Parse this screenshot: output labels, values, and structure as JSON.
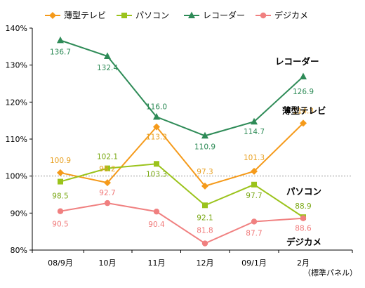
{
  "chart_data": {
    "type": "line",
    "categories": [
      "08/9月",
      "10月",
      "11月",
      "12月",
      "09/1月",
      "2月"
    ],
    "y_ticks": [
      "140%",
      "130%",
      "120%",
      "110%",
      "100%",
      "90%",
      "80%"
    ],
    "y_tick_values": [
      140,
      130,
      120,
      110,
      100,
      90,
      80
    ],
    "ylim": [
      80,
      140
    ],
    "reference_line": 100,
    "note": "（標準パネル）",
    "grid": false,
    "legend_position": "top",
    "series": [
      {
        "name": "薄型テレビ",
        "color": "#f59a1a",
        "marker": "diamond",
        "values": [
          100.9,
          98.2,
          113.3,
          97.3,
          101.3,
          114.3
        ],
        "labels": [
          "100.9",
          "98.2",
          "113.3",
          "97.3",
          "101.3",
          "114.3"
        ],
        "label_color": "#e8a020",
        "end_label": "薄型テレビ"
      },
      {
        "name": "パソコン",
        "color": "#9bc31c",
        "marker": "square",
        "values": [
          98.5,
          102.1,
          103.3,
          92.1,
          97.7,
          88.9
        ],
        "labels": [
          "98.5",
          "102.1",
          "103.3",
          "92.1",
          "97.7",
          "88.9"
        ],
        "label_color": "#7aa814",
        "end_label": "パソコン"
      },
      {
        "name": "レコーダー",
        "color": "#2e8b57",
        "marker": "triangle",
        "values": [
          136.7,
          132.4,
          116.0,
          110.9,
          114.7,
          126.9
        ],
        "labels": [
          "136.7",
          "132.4",
          "116.0",
          "110.9",
          "114.7",
          "126.9"
        ],
        "label_color": "#2e8b57",
        "end_label": "レコーダー"
      },
      {
        "name": "デジカメ",
        "color": "#f08080",
        "marker": "circle",
        "values": [
          90.5,
          92.7,
          90.4,
          81.8,
          87.7,
          88.6
        ],
        "labels": [
          "90.5",
          "92.7",
          "90.4",
          "81.8",
          "87.7",
          "88.6"
        ],
        "label_color": "#f07878",
        "end_label": "デジカメ"
      }
    ]
  }
}
